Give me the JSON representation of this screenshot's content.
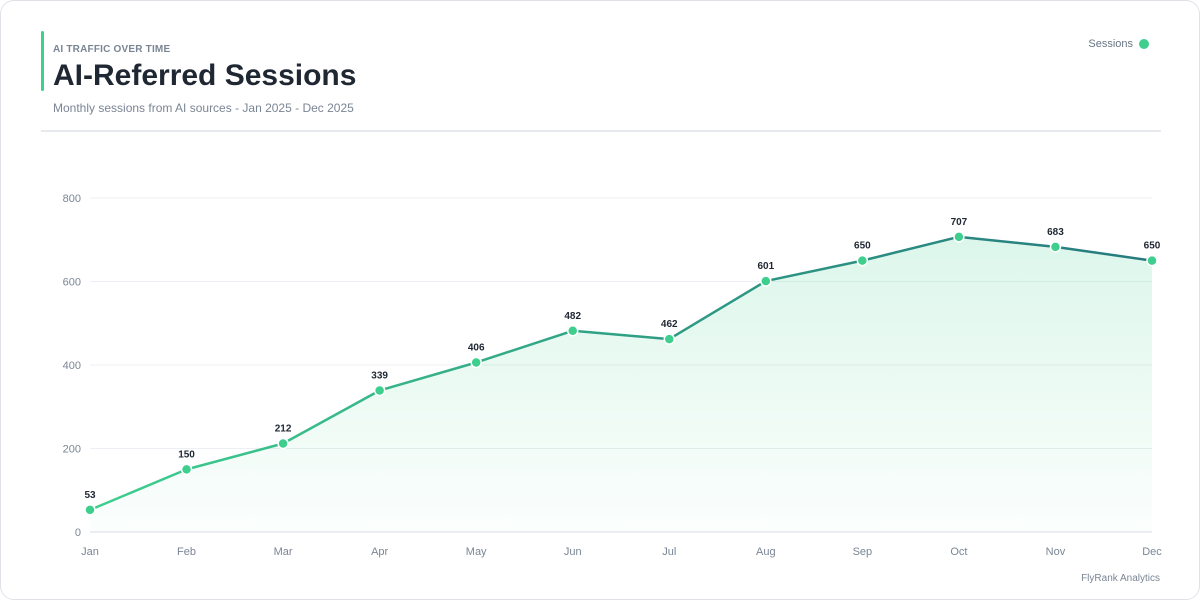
{
  "header": {
    "kicker": "AI TRAFFIC OVER TIME",
    "title": "AI-Referred Sessions",
    "subtitle": "Monthly sessions from AI sources - Jan 2025 - Dec 2025"
  },
  "legend": {
    "label": "Sessions",
    "color": "#3ecf8e"
  },
  "footer": "FlyRank Analytics",
  "colors": {
    "line_start": "#3ecf8e",
    "line_end": "#267a7e",
    "point": "#3ecf8e",
    "area": "#3ecf8e"
  },
  "chart_data": {
    "type": "line",
    "title": "AI-Referred Sessions",
    "xlabel": "",
    "ylabel": "",
    "categories": [
      "Jan",
      "Feb",
      "Mar",
      "Apr",
      "May",
      "Jun",
      "Jul",
      "Aug",
      "Sep",
      "Oct",
      "Nov",
      "Dec"
    ],
    "series": [
      {
        "name": "Sessions",
        "values": [
          53,
          150,
          212,
          339,
          406,
          482,
          462,
          601,
          650,
          707,
          683,
          650
        ]
      }
    ],
    "ylim": [
      0,
      800
    ],
    "yticks": [
      0,
      200,
      400,
      600,
      800
    ],
    "grid": true,
    "legend_position": "top-right",
    "data_labels": true,
    "area_fill": true
  }
}
